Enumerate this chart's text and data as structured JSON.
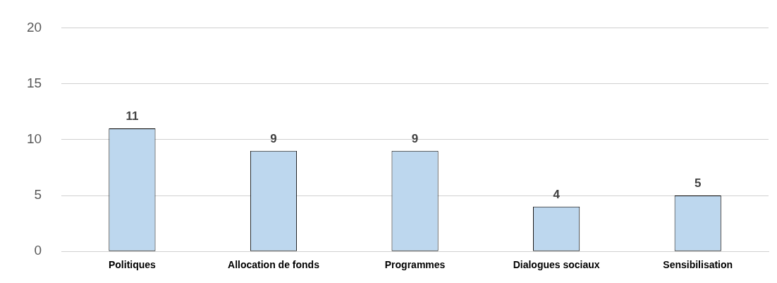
{
  "chart_data": {
    "type": "bar",
    "categories": [
      "Politiques",
      "Allocation de fonds",
      "Programmes",
      "Dialogues sociaux",
      "Sensibilisation"
    ],
    "values": [
      11,
      9,
      9,
      4,
      5
    ],
    "color": "#bdd7ee",
    "ylim": [
      0,
      20
    ],
    "yticks": [
      0,
      5,
      10,
      15,
      20
    ],
    "grid": "y",
    "data_labels": true,
    "legend": false
  }
}
